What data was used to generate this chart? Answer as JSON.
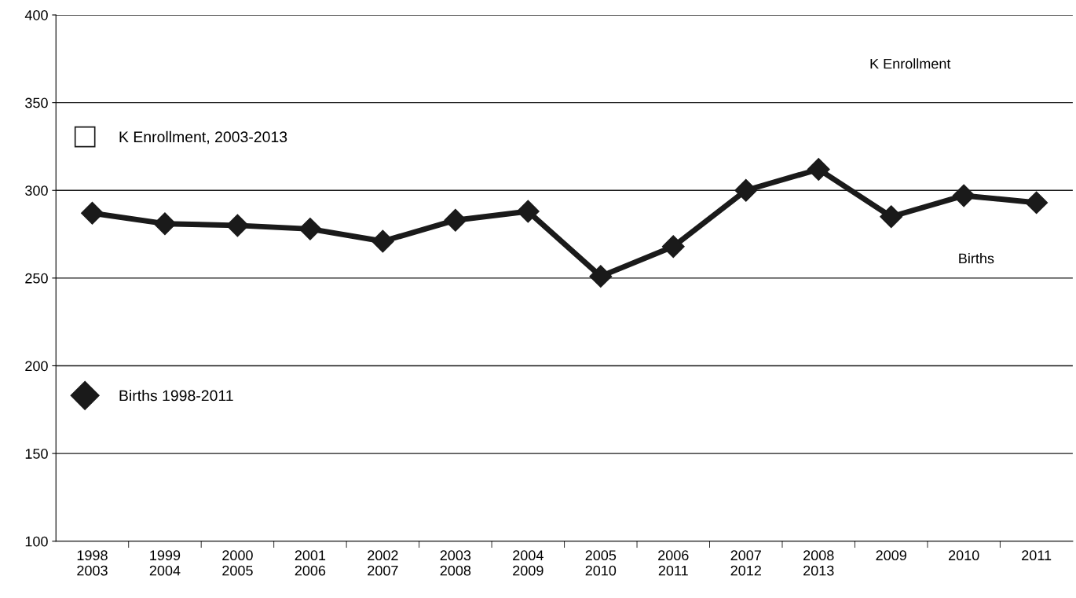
{
  "chart_data": {
    "type": "line",
    "categories": [
      "1998\n2003",
      "1999\n2004",
      "2000\n2005",
      "2001\n2006",
      "2002\n2007",
      "2003\n2008",
      "2004\n2009",
      "2005\n2010",
      "2006\n2011",
      "2007\n2012",
      "2008\n2013",
      "2009",
      "2010",
      "2011"
    ],
    "series": [
      {
        "name": "K Enrollment, 2003-2013",
        "color": "#ffffff",
        "marker": "square",
        "values": [
          null,
          null,
          null,
          null,
          null,
          null,
          null,
          null,
          null,
          null,
          null,
          null,
          null,
          null
        ]
      },
      {
        "name": "Births 1998-2011",
        "color": "#1a1a1a",
        "marker": "diamond",
        "values": [
          287,
          281,
          280,
          278,
          271,
          283,
          288,
          251,
          268,
          300,
          312,
          285,
          297,
          293
        ]
      }
    ],
    "ylim": [
      100,
      400
    ],
    "yticks": [
      100,
      150,
      200,
      250,
      300,
      350,
      400
    ],
    "grid": "y",
    "legend": "left",
    "annotations": [
      "K Enrollment",
      "Births"
    ]
  }
}
